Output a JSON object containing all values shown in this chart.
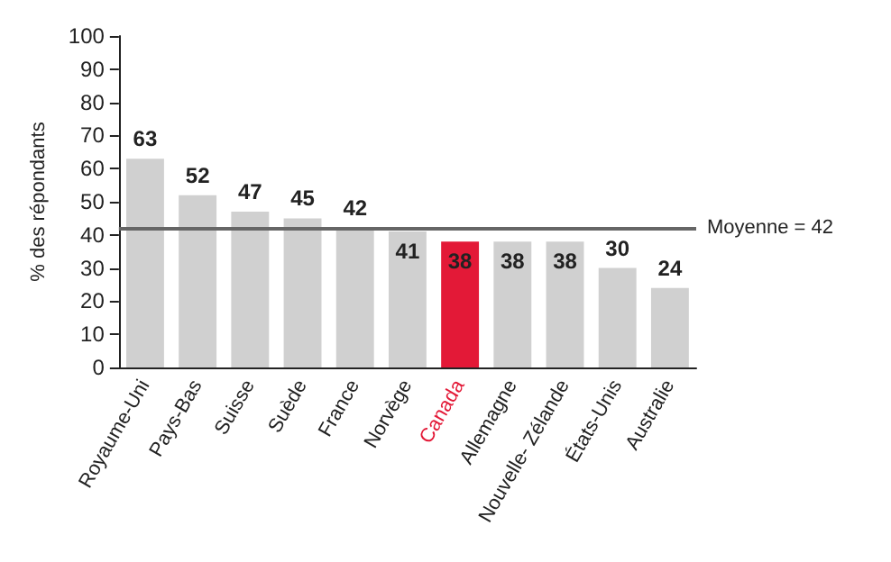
{
  "chart_data": {
    "type": "bar",
    "ylabel": "% des répondants",
    "categories": [
      "Royaume-Uni",
      "Pays-Bas",
      "Suisse",
      "Suède",
      "France",
      "Norvège",
      "Canada",
      "Allemagne",
      "Nouvelle- Zélande",
      "États-Unis",
      "Australie"
    ],
    "values": [
      63,
      52,
      47,
      45,
      42,
      41,
      38,
      38,
      38,
      30,
      24
    ],
    "colors": [
      "#d0d0d0",
      "#d0d0d0",
      "#d0d0d0",
      "#d0d0d0",
      "#d0d0d0",
      "#d0d0d0",
      "#e31937",
      "#d0d0d0",
      "#d0d0d0",
      "#d0d0d0",
      "#d0d0d0"
    ],
    "ylim": [
      0,
      100
    ],
    "yticks": [
      0,
      10,
      20,
      30,
      40,
      50,
      60,
      70,
      80,
      90,
      100
    ],
    "ref_lines": [
      {
        "axis": "y",
        "value": 42,
        "label": "Moyenne = 42",
        "color": "#666666"
      }
    ],
    "data_labels": true,
    "grid": false
  }
}
